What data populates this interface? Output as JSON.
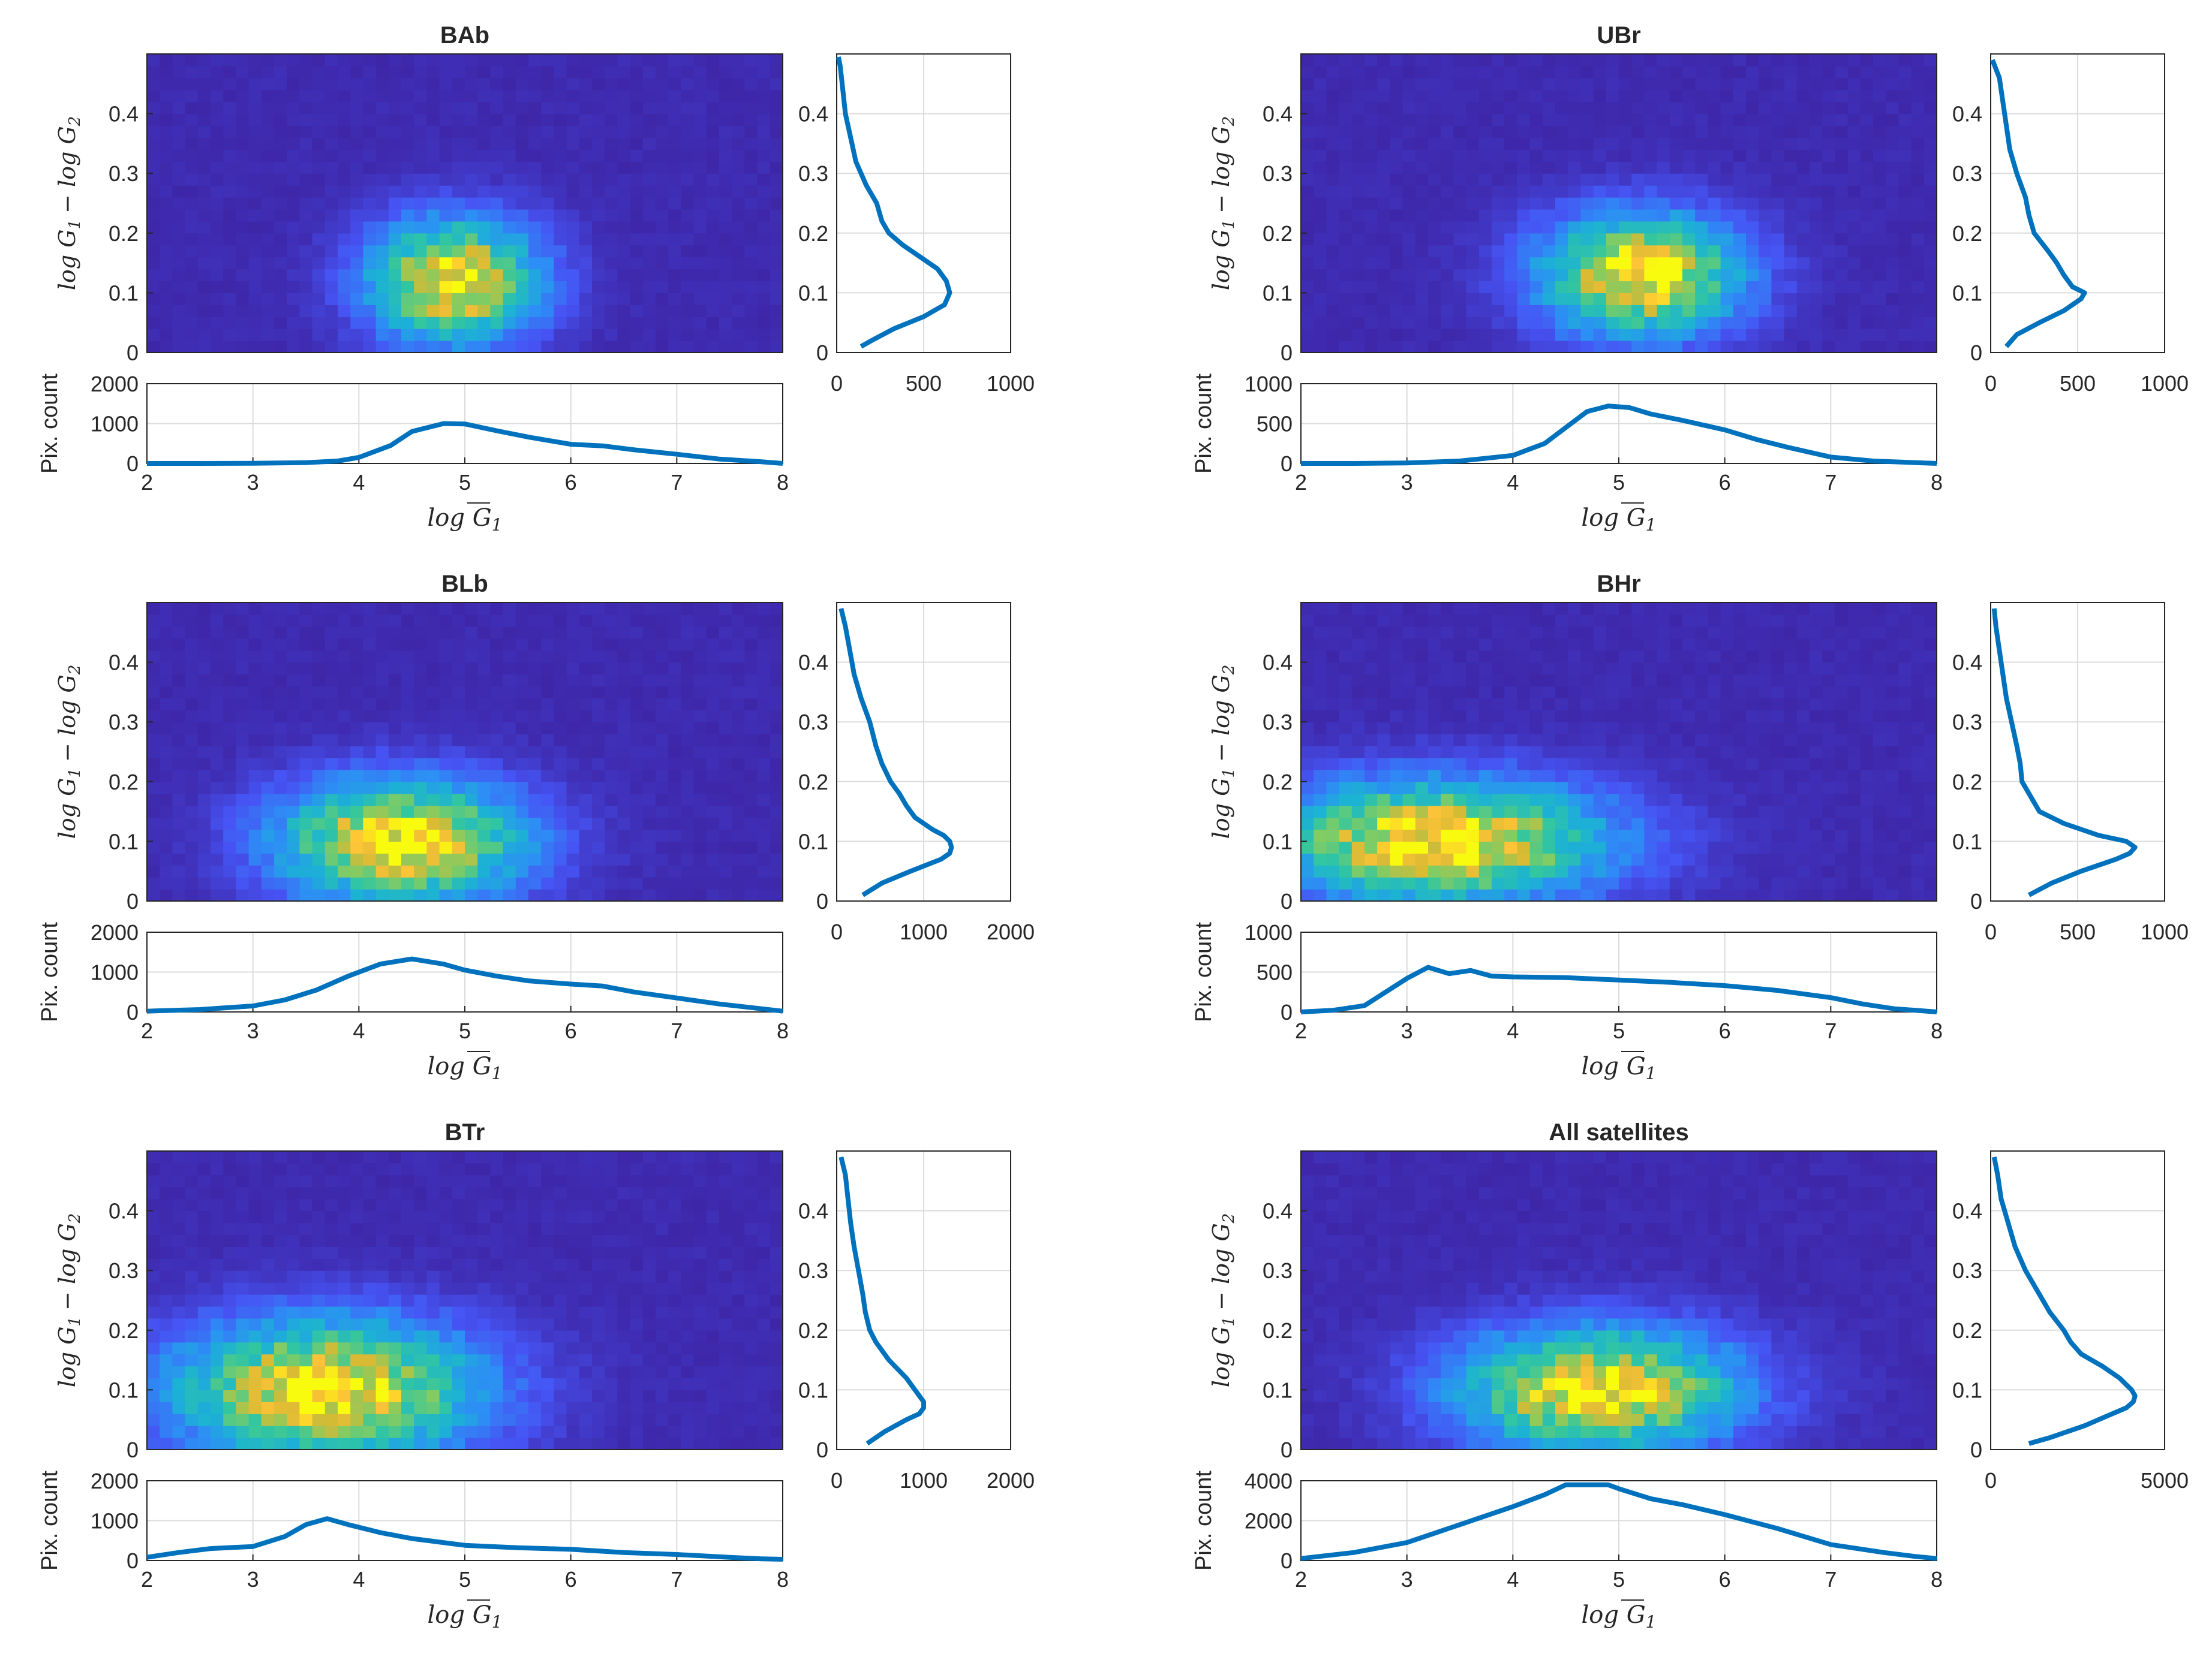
{
  "figure": {
    "colormap": "parula",
    "line_color": "#0072BD",
    "axis_color": "#262626",
    "grid_color": "#dcdcdc"
  },
  "labels": {
    "ylabel_2d_lhs": "log G",
    "ylabel_2d_sub1": "1",
    "ylabel_2d_minus": "−",
    "ylabel_2d_rhs": "log G",
    "ylabel_2d_sub2": "2",
    "xlabel": "log G",
    "xlabel_sub": "1",
    "ylabel_hist": "Pix. count"
  },
  "chart_data": [
    {
      "type": "heatmap",
      "title": "BAb",
      "xlim": [
        2,
        8
      ],
      "ylim": [
        0,
        0.5
      ],
      "xticks": [
        "2",
        "3",
        "4",
        "5",
        "6",
        "7",
        "8"
      ],
      "yticks": [
        "0",
        "0.1",
        "0.2",
        "0.3",
        "0.4"
      ],
      "peak": {
        "x": 4.9,
        "y": 0.12
      },
      "spread": {
        "x": 0.55,
        "y": 0.07
      },
      "x_profile": {
        "x": [
          2,
          2.5,
          3,
          3.5,
          3.8,
          4.0,
          4.3,
          4.5,
          4.8,
          5.0,
          5.3,
          5.6,
          6.0,
          6.3,
          6.6,
          7.0,
          7.4,
          7.8,
          8.0
        ],
        "y": [
          0,
          0,
          5,
          20,
          60,
          150,
          450,
          800,
          1000,
          990,
          820,
          660,
          480,
          440,
          340,
          230,
          110,
          40,
          0
        ],
        "ylim": [
          0,
          2000
        ],
        "yticks": [
          "0",
          "1000",
          "2000"
        ]
      },
      "y_profile": {
        "y": [
          0.01,
          0.02,
          0.04,
          0.06,
          0.08,
          0.1,
          0.12,
          0.14,
          0.16,
          0.18,
          0.2,
          0.22,
          0.25,
          0.28,
          0.32,
          0.36,
          0.4,
          0.44,
          0.48,
          0.495
        ],
        "x": [
          140,
          200,
          330,
          500,
          620,
          650,
          630,
          580,
          480,
          380,
          300,
          260,
          230,
          170,
          110,
          80,
          50,
          35,
          20,
          10
        ],
        "xlim": [
          0,
          1000
        ],
        "xticks": [
          "0",
          "500",
          "1000"
        ]
      }
    },
    {
      "type": "heatmap",
      "title": "UBr",
      "xlim": [
        2,
        8
      ],
      "ylim": [
        0,
        0.5
      ],
      "xticks": [
        "2",
        "3",
        "4",
        "5",
        "6",
        "7",
        "8"
      ],
      "yticks": [
        "0",
        "0.1",
        "0.2",
        "0.3",
        "0.4"
      ],
      "peak": {
        "x": 5.2,
        "y": 0.13
      },
      "spread": {
        "x": 0.65,
        "y": 0.07
      },
      "x_profile": {
        "x": [
          2,
          2.5,
          3,
          3.5,
          4.0,
          4.3,
          4.5,
          4.7,
          4.9,
          5.1,
          5.3,
          5.6,
          6.0,
          6.3,
          6.6,
          7.0,
          7.4,
          7.8,
          8.0
        ],
        "y": [
          0,
          0,
          5,
          30,
          100,
          250,
          450,
          650,
          720,
          700,
          620,
          540,
          420,
          300,
          200,
          80,
          30,
          10,
          0
        ],
        "ylim": [
          0,
          1000
        ],
        "yticks": [
          "0",
          "500",
          "1000"
        ]
      },
      "y_profile": {
        "y": [
          0.01,
          0.03,
          0.05,
          0.07,
          0.09,
          0.1,
          0.11,
          0.13,
          0.15,
          0.17,
          0.2,
          0.23,
          0.26,
          0.3,
          0.34,
          0.38,
          0.42,
          0.46,
          0.49
        ],
        "x": [
          90,
          150,
          280,
          420,
          520,
          540,
          470,
          420,
          380,
          330,
          250,
          220,
          200,
          150,
          110,
          90,
          70,
          50,
          10
        ],
        "xlim": [
          0,
          1000
        ],
        "xticks": [
          "0",
          "500",
          "1000"
        ]
      }
    },
    {
      "type": "heatmap",
      "title": "BLb",
      "xlim": [
        2,
        8
      ],
      "ylim": [
        0,
        0.5
      ],
      "xticks": [
        "2",
        "3",
        "4",
        "5",
        "6",
        "7",
        "8"
      ],
      "yticks": [
        "0",
        "0.1",
        "0.2",
        "0.3",
        "0.4"
      ],
      "peak": {
        "x": 4.4,
        "y": 0.1
      },
      "spread": {
        "x": 0.8,
        "y": 0.07
      },
      "x_profile": {
        "x": [
          2,
          2.5,
          3,
          3.3,
          3.6,
          3.9,
          4.2,
          4.5,
          4.8,
          5.0,
          5.3,
          5.6,
          6.0,
          6.3,
          6.6,
          7.0,
          7.4,
          7.8,
          8.0
        ],
        "y": [
          20,
          60,
          150,
          300,
          550,
          900,
          1200,
          1330,
          1200,
          1050,
          900,
          780,
          700,
          650,
          500,
          350,
          200,
          80,
          20
        ],
        "ylim": [
          0,
          2000
        ],
        "yticks": [
          "0",
          "1000",
          "2000"
        ]
      },
      "y_profile": {
        "y": [
          0.01,
          0.03,
          0.05,
          0.07,
          0.08,
          0.09,
          0.1,
          0.11,
          0.12,
          0.14,
          0.16,
          0.18,
          0.2,
          0.23,
          0.26,
          0.3,
          0.34,
          0.38,
          0.42,
          0.46,
          0.49
        ],
        "x": [
          300,
          520,
          850,
          1200,
          1300,
          1320,
          1300,
          1230,
          1100,
          900,
          800,
          720,
          620,
          520,
          450,
          380,
          280,
          200,
          150,
          100,
          50
        ],
        "xlim": [
          0,
          2000
        ],
        "xticks": [
          "0",
          "1000",
          "2000"
        ]
      }
    },
    {
      "type": "heatmap",
      "title": "BHr",
      "xlim": [
        2,
        8
      ],
      "ylim": [
        0,
        0.5
      ],
      "xticks": [
        "2",
        "3",
        "4",
        "5",
        "6",
        "7",
        "8"
      ],
      "yticks": [
        "0",
        "0.1",
        "0.2",
        "0.3",
        "0.4"
      ],
      "peak": {
        "x": 3.3,
        "y": 0.1
      },
      "spread": {
        "x": 1.1,
        "y": 0.07
      },
      "x_profile": {
        "x": [
          2,
          2.3,
          2.6,
          2.8,
          3.0,
          3.2,
          3.4,
          3.6,
          3.8,
          4.0,
          4.5,
          5.0,
          5.5,
          6.0,
          6.5,
          7.0,
          7.3,
          7.6,
          7.8,
          8.0
        ],
        "y": [
          0,
          20,
          80,
          250,
          420,
          560,
          480,
          520,
          450,
          440,
          430,
          400,
          370,
          330,
          270,
          180,
          100,
          40,
          20,
          0
        ],
        "ylim": [
          0,
          1000
        ],
        "yticks": [
          "0",
          "500",
          "1000"
        ]
      },
      "y_profile": {
        "y": [
          0.01,
          0.03,
          0.05,
          0.07,
          0.08,
          0.09,
          0.1,
          0.11,
          0.13,
          0.15,
          0.17,
          0.2,
          0.23,
          0.26,
          0.3,
          0.34,
          0.38,
          0.42,
          0.46,
          0.49
        ],
        "x": [
          220,
          350,
          520,
          720,
          800,
          830,
          780,
          620,
          420,
          280,
          240,
          180,
          170,
          150,
          120,
          90,
          70,
          50,
          30,
          20
        ],
        "xlim": [
          0,
          1000
        ],
        "xticks": [
          "0",
          "500",
          "1000"
        ]
      }
    },
    {
      "type": "heatmap",
      "title": "BTr",
      "xlim": [
        2,
        8
      ],
      "ylim": [
        0,
        0.5
      ],
      "xticks": [
        "2",
        "3",
        "4",
        "5",
        "6",
        "7",
        "8"
      ],
      "yticks": [
        "0",
        "0.1",
        "0.2",
        "0.3",
        "0.4"
      ],
      "peak": {
        "x": 3.7,
        "y": 0.1
      },
      "spread": {
        "x": 1.0,
        "y": 0.08
      },
      "x_profile": {
        "x": [
          2,
          2.3,
          2.6,
          3.0,
          3.3,
          3.5,
          3.7,
          3.9,
          4.2,
          4.5,
          5.0,
          5.5,
          6.0,
          6.5,
          7.0,
          7.5,
          7.8,
          8.0
        ],
        "y": [
          80,
          200,
          300,
          350,
          600,
          900,
          1050,
          900,
          700,
          550,
          380,
          320,
          280,
          200,
          150,
          80,
          40,
          30
        ],
        "ylim": [
          0,
          2000
        ],
        "yticks": [
          "0",
          "1000",
          "2000"
        ]
      },
      "y_profile": {
        "y": [
          0.01,
          0.03,
          0.05,
          0.06,
          0.07,
          0.08,
          0.1,
          0.12,
          0.15,
          0.18,
          0.2,
          0.23,
          0.26,
          0.3,
          0.34,
          0.38,
          0.42,
          0.46,
          0.49
        ],
        "x": [
          350,
          550,
          800,
          950,
          1000,
          1000,
          900,
          800,
          600,
          450,
          380,
          330,
          300,
          250,
          200,
          160,
          130,
          100,
          50
        ],
        "xlim": [
          0,
          2000
        ],
        "xticks": [
          "0",
          "1000",
          "2000"
        ]
      }
    },
    {
      "type": "heatmap",
      "title": "All satellites",
      "xlim": [
        2,
        8
      ],
      "ylim": [
        0,
        0.5
      ],
      "xticks": [
        "2",
        "3",
        "4",
        "5",
        "6",
        "7",
        "8"
      ],
      "yticks": [
        "0",
        "0.1",
        "0.2",
        "0.3",
        "0.4"
      ],
      "peak": {
        "x": 4.8,
        "y": 0.1
      },
      "spread": {
        "x": 0.9,
        "y": 0.07
      },
      "x_profile": {
        "x": [
          2,
          2.5,
          3,
          3.5,
          4.0,
          4.3,
          4.5,
          4.7,
          4.9,
          5.0,
          5.3,
          5.6,
          6.0,
          6.5,
          7.0,
          7.5,
          7.8,
          8.0
        ],
        "y": [
          100,
          400,
          900,
          1800,
          2700,
          3300,
          3800,
          3800,
          3800,
          3600,
          3100,
          2800,
          2300,
          1600,
          800,
          400,
          200,
          100
        ],
        "ylim": [
          0,
          4000
        ],
        "yticks": [
          "0",
          "2000",
          "4000"
        ]
      },
      "y_profile": {
        "y": [
          0.01,
          0.02,
          0.04,
          0.06,
          0.07,
          0.08,
          0.09,
          0.1,
          0.12,
          0.14,
          0.16,
          0.18,
          0.2,
          0.23,
          0.26,
          0.3,
          0.34,
          0.38,
          0.42,
          0.46,
          0.49
        ],
        "x": [
          1100,
          1700,
          2700,
          3500,
          3900,
          4100,
          4150,
          4050,
          3700,
          3200,
          2600,
          2300,
          2100,
          1700,
          1400,
          1000,
          700,
          500,
          300,
          200,
          100
        ],
        "xlim": [
          0,
          5000
        ],
        "xticks": [
          "0",
          "5000"
        ]
      }
    }
  ]
}
